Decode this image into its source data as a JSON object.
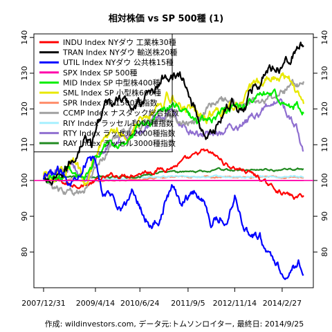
{
  "chart_data": {
    "type": "line",
    "title": "相対株価 vs SP 500種 (1)",
    "footer": "作成: wildinvestors.com, データ元:トムソンロイター, 最終日: 2014/9/25",
    "x_tick_labels": [
      "2007/12/31",
      "2009/4/14",
      "2010/6/24",
      "2011/9/5",
      "2012/11/14",
      "2014/2/27"
    ],
    "x_tick_index": [
      0,
      70,
      130,
      195,
      258,
      322
    ],
    "n_points": 352,
    "ylim": [
      70,
      141
    ],
    "y_ticks": [
      80,
      90,
      100,
      110,
      120,
      130,
      140
    ],
    "reference_line": 100,
    "series": [
      {
        "name": "INDU Index NYダウ 工業株30種",
        "color": "#ff0000",
        "anchors": [
          [
            0,
            101
          ],
          [
            30,
            99
          ],
          [
            60,
            99
          ],
          [
            90,
            101
          ],
          [
            120,
            102
          ],
          [
            150,
            103
          ],
          [
            175,
            104
          ],
          [
            200,
            106
          ],
          [
            215,
            108
          ],
          [
            230,
            107
          ],
          [
            250,
            104
          ],
          [
            270,
            103
          ],
          [
            290,
            101
          ],
          [
            300,
            99
          ],
          [
            320,
            97
          ],
          [
            340,
            95
          ],
          [
            351,
            96
          ]
        ]
      },
      {
        "name": "TRAN Index NYダウ 輸送株20種",
        "color": "#000000",
        "anchors": [
          [
            0,
            100
          ],
          [
            20,
            99
          ],
          [
            40,
            106
          ],
          [
            55,
            113
          ],
          [
            65,
            110
          ],
          [
            80,
            120
          ],
          [
            100,
            123
          ],
          [
            115,
            121
          ],
          [
            130,
            122
          ],
          [
            150,
            126
          ],
          [
            175,
            131
          ],
          [
            190,
            127
          ],
          [
            205,
            120
          ],
          [
            215,
            114
          ],
          [
            225,
            112
          ],
          [
            240,
            118
          ],
          [
            255,
            122
          ],
          [
            270,
            120
          ],
          [
            285,
            127
          ],
          [
            300,
            131
          ],
          [
            320,
            133
          ],
          [
            340,
            137
          ],
          [
            351,
            138
          ]
        ]
      },
      {
        "name": "UTIL Index NYダウ 公共株15種",
        "color": "#0000ff",
        "anchors": [
          [
            0,
            100
          ],
          [
            20,
            102
          ],
          [
            40,
            100
          ],
          [
            55,
            106
          ],
          [
            70,
            105
          ],
          [
            80,
            97
          ],
          [
            95,
            95
          ],
          [
            110,
            93
          ],
          [
            120,
            97
          ],
          [
            135,
            91
          ],
          [
            145,
            88
          ],
          [
            155,
            89
          ],
          [
            165,
            95
          ],
          [
            175,
            98
          ],
          [
            185,
            94
          ],
          [
            195,
            96
          ],
          [
            205,
            97
          ],
          [
            218,
            94
          ],
          [
            228,
            88
          ],
          [
            238,
            90
          ],
          [
            248,
            89
          ],
          [
            258,
            97
          ],
          [
            268,
            89
          ],
          [
            280,
            85
          ],
          [
            292,
            84
          ],
          [
            302,
            79
          ],
          [
            312,
            78
          ],
          [
            320,
            76
          ],
          [
            328,
            74
          ],
          [
            335,
            77
          ],
          [
            345,
            77
          ],
          [
            351,
            76
          ]
        ]
      },
      {
        "name": "SPX Index SP 500種",
        "color": "#ff00aa",
        "anchors": [
          [
            0,
            100
          ],
          [
            351,
            100
          ]
        ]
      },
      {
        "name": "MID Index SP 中型株400種",
        "color": "#00ee00",
        "anchors": [
          [
            0,
            100
          ],
          [
            20,
            101
          ],
          [
            40,
            103
          ],
          [
            55,
            98
          ],
          [
            70,
            106
          ],
          [
            90,
            110
          ],
          [
            110,
            112
          ],
          [
            130,
            115
          ],
          [
            150,
            118
          ],
          [
            170,
            121
          ],
          [
            190,
            119
          ],
          [
            210,
            116
          ],
          [
            230,
            118
          ],
          [
            250,
            120
          ],
          [
            270,
            121
          ],
          [
            290,
            123
          ],
          [
            310,
            124
          ],
          [
            330,
            122
          ],
          [
            351,
            120
          ]
        ]
      },
      {
        "name": "SML Index SP 小型株600種",
        "color": "#e8e800",
        "anchors": [
          [
            0,
            101
          ],
          [
            20,
            103
          ],
          [
            40,
            106
          ],
          [
            55,
            99
          ],
          [
            70,
            108
          ],
          [
            90,
            112
          ],
          [
            110,
            114
          ],
          [
            130,
            117
          ],
          [
            150,
            121
          ],
          [
            170,
            124
          ],
          [
            190,
            121
          ],
          [
            210,
            117
          ],
          [
            230,
            119
          ],
          [
            250,
            121
          ],
          [
            270,
            123
          ],
          [
            290,
            126
          ],
          [
            305,
            129
          ],
          [
            315,
            130
          ],
          [
            330,
            128
          ],
          [
            345,
            124
          ],
          [
            351,
            122
          ]
        ]
      },
      {
        "name": "SPR Index SP 1500種指数",
        "color": "#ff8c69",
        "anchors": [
          [
            0,
            100
          ],
          [
            60,
            100
          ],
          [
            120,
            100
          ],
          [
            180,
            101
          ],
          [
            240,
            101
          ],
          [
            300,
            101
          ],
          [
            351,
            101
          ]
        ]
      },
      {
        "name": "CCMP Index ナスダック総合指数",
        "color": "#a0a0a0",
        "anchors": [
          [
            0,
            100
          ],
          [
            20,
            97
          ],
          [
            40,
            96
          ],
          [
            55,
            98
          ],
          [
            70,
            104
          ],
          [
            90,
            110
          ],
          [
            110,
            114
          ],
          [
            130,
            115
          ],
          [
            150,
            117
          ],
          [
            170,
            118
          ],
          [
            190,
            116
          ],
          [
            210,
            118
          ],
          [
            230,
            122
          ],
          [
            250,
            121
          ],
          [
            270,
            121
          ],
          [
            290,
            123
          ],
          [
            310,
            124
          ],
          [
            330,
            126
          ],
          [
            351,
            127
          ]
        ]
      },
      {
        "name": "RIY Index ラッセル1000種指数",
        "color": "#a6f0ff",
        "anchors": [
          [
            0,
            100
          ],
          [
            60,
            100
          ],
          [
            120,
            101
          ],
          [
            180,
            101
          ],
          [
            240,
            101
          ],
          [
            300,
            101
          ],
          [
            351,
            101
          ]
        ]
      },
      {
        "name": "RTY Index ラッセル2000種指数",
        "color": "#8f6fd0",
        "anchors": [
          [
            0,
            101
          ],
          [
            20,
            102
          ],
          [
            40,
            104
          ],
          [
            55,
            99
          ],
          [
            70,
            106
          ],
          [
            90,
            111
          ],
          [
            110,
            113
          ],
          [
            130,
            114
          ],
          [
            150,
            117
          ],
          [
            170,
            118
          ],
          [
            190,
            115
          ],
          [
            210,
            112
          ],
          [
            230,
            114
          ],
          [
            250,
            115
          ],
          [
            270,
            116
          ],
          [
            290,
            119
          ],
          [
            305,
            121
          ],
          [
            315,
            123
          ],
          [
            330,
            119
          ],
          [
            345,
            112
          ],
          [
            351,
            109
          ]
        ]
      },
      {
        "name": "RAY Index ラッセル3000種指数",
        "color": "#228b22",
        "anchors": [
          [
            0,
            100
          ],
          [
            40,
            101
          ],
          [
            80,
            101
          ],
          [
            120,
            101
          ],
          [
            160,
            102
          ],
          [
            200,
            102
          ],
          [
            240,
            103
          ],
          [
            280,
            103
          ],
          [
            320,
            103
          ],
          [
            351,
            103
          ]
        ]
      }
    ],
    "legend_position": "top-left",
    "grid": false
  }
}
